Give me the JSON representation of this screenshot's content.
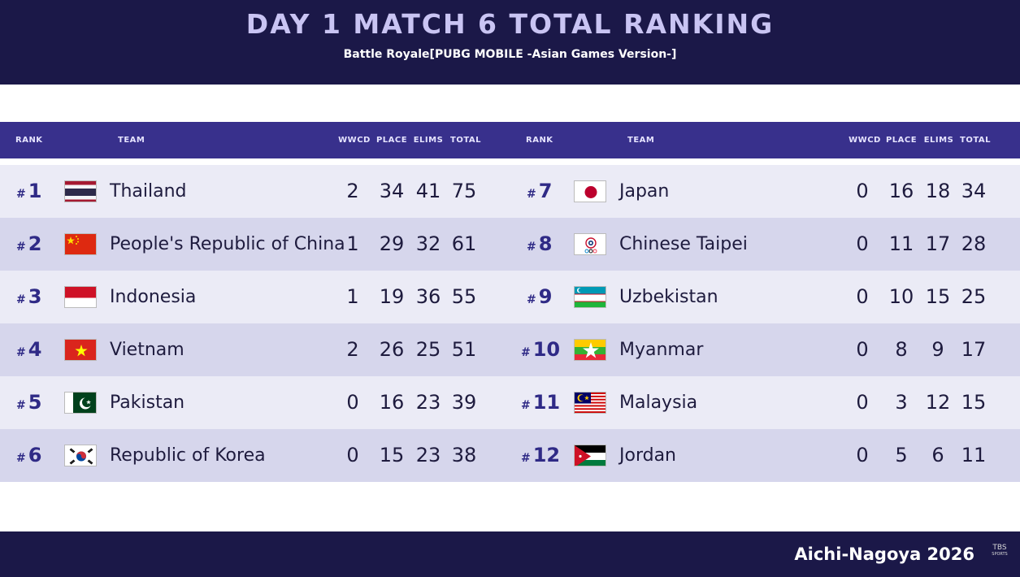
{
  "header": {
    "title": "DAY 1 MATCH 6 TOTAL RANKING",
    "subtitle": "Battle Royale[PUBG MOBILE -Asian Games Version-]"
  },
  "columns": {
    "rank": "RANK",
    "team": "TEAM",
    "wwcd": "WWCD",
    "place": "PLACE",
    "elims": "ELIMS",
    "total": "TOTAL"
  },
  "left_rows": [
    {
      "hash": "#",
      "rank": "1",
      "team": "Thailand",
      "flag": "thailand-flag",
      "wwcd": "2",
      "place": "34",
      "elims": "41",
      "total": "75"
    },
    {
      "hash": "#",
      "rank": "2",
      "team": "People's Republic of China",
      "flag": "china-flag",
      "wwcd": "1",
      "place": "29",
      "elims": "32",
      "total": "61"
    },
    {
      "hash": "#",
      "rank": "3",
      "team": "Indonesia",
      "flag": "indonesia-flag",
      "wwcd": "1",
      "place": "19",
      "elims": "36",
      "total": "55"
    },
    {
      "hash": "#",
      "rank": "4",
      "team": "Vietnam",
      "flag": "vietnam-flag",
      "wwcd": "2",
      "place": "26",
      "elims": "25",
      "total": "51"
    },
    {
      "hash": "#",
      "rank": "5",
      "team": "Pakistan",
      "flag": "pakistan-flag",
      "wwcd": "0",
      "place": "16",
      "elims": "23",
      "total": "39"
    },
    {
      "hash": "#",
      "rank": "6",
      "team": "Republic of Korea",
      "flag": "korea-flag",
      "wwcd": "0",
      "place": "15",
      "elims": "23",
      "total": "38"
    }
  ],
  "right_rows": [
    {
      "hash": "#",
      "rank": "7",
      "team": "Japan",
      "flag": "japan-flag",
      "wwcd": "0",
      "place": "16",
      "elims": "18",
      "total": "34"
    },
    {
      "hash": "#",
      "rank": "8",
      "team": "Chinese Taipei",
      "flag": "chinese-taipei-flag",
      "wwcd": "0",
      "place": "11",
      "elims": "17",
      "total": "28"
    },
    {
      "hash": "#",
      "rank": "9",
      "team": "Uzbekistan",
      "flag": "uzbekistan-flag",
      "wwcd": "0",
      "place": "10",
      "elims": "15",
      "total": "25"
    },
    {
      "hash": "#",
      "rank": "10",
      "team": "Myanmar",
      "flag": "myanmar-flag",
      "wwcd": "0",
      "place": "8",
      "elims": "9",
      "total": "17"
    },
    {
      "hash": "#",
      "rank": "11",
      "team": "Malaysia",
      "flag": "malaysia-flag",
      "wwcd": "0",
      "place": "3",
      "elims": "12",
      "total": "15"
    },
    {
      "hash": "#",
      "rank": "12",
      "team": "Jordan",
      "flag": "jordan-flag",
      "wwcd": "0",
      "place": "5",
      "elims": "6",
      "total": "11"
    }
  ],
  "footer": {
    "text": "Aichi-Nagoya 2026",
    "logo_main": "TBS",
    "logo_sub": "SPORTS"
  },
  "colors": {
    "header_bg": "#1b1848",
    "column_header_bg": "#38308c",
    "row_light": "#ebebf6",
    "row_dark": "#d6d6ec",
    "rank_color": "#2f2a86"
  }
}
